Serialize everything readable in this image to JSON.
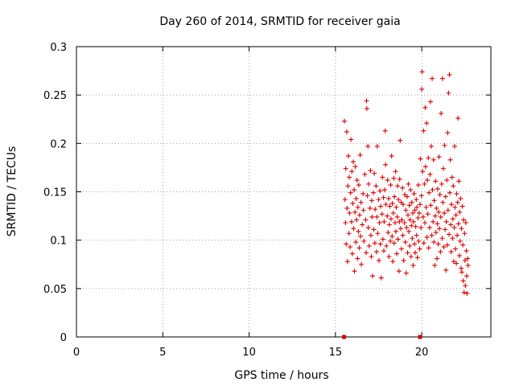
{
  "chart_data": {
    "type": "scatter",
    "title": "Day 260 of 2014, SRMTID for receiver gaia",
    "xlabel": "GPS time / hours",
    "ylabel": "SRMTID / TECUs",
    "xlim": [
      0,
      24
    ],
    "ylim": [
      0,
      0.3
    ],
    "x_ticks": [
      0,
      5,
      10,
      15,
      20
    ],
    "y_ticks": [
      0,
      0.05,
      0.1,
      0.15,
      0.2,
      0.25,
      0.3
    ],
    "x_tick_labels": [
      "0",
      "5",
      "10",
      "15",
      "20"
    ],
    "y_tick_labels": [
      "0",
      "0.05",
      "0.1",
      "0.15",
      "0.2",
      "0.25",
      "0.3"
    ],
    "grid": true,
    "legend": "none",
    "marker": "plus",
    "color": "#dd0000",
    "zero_markers": [
      {
        "x": 15.5,
        "y": 0
      },
      {
        "x": 19.9,
        "y": 0
      }
    ],
    "series": [
      {
        "points": [
          [
            15.52,
            0.223
          ],
          [
            15.55,
            0.142
          ],
          [
            15.58,
            0.118
          ],
          [
            15.6,
            0.174
          ],
          [
            15.62,
            0.096
          ],
          [
            15.65,
            0.212
          ],
          [
            15.67,
            0.133
          ],
          [
            15.7,
            0.078
          ],
          [
            15.72,
            0.156
          ],
          [
            15.75,
            0.187
          ],
          [
            15.78,
            0.107
          ],
          [
            15.8,
            0.165
          ],
          [
            15.82,
            0.128
          ],
          [
            15.85,
            0.093
          ],
          [
            15.88,
            0.149
          ],
          [
            15.9,
            0.204
          ],
          [
            15.93,
            0.119
          ],
          [
            15.95,
            0.171
          ],
          [
            15.98,
            0.086
          ],
          [
            16.0,
            0.138
          ],
          [
            16.03,
            0.181
          ],
          [
            16.05,
            0.112
          ],
          [
            16.08,
            0.152
          ],
          [
            16.1,
            0.068
          ],
          [
            16.13,
            0.129
          ],
          [
            16.15,
            0.176
          ],
          [
            16.18,
            0.098
          ],
          [
            16.2,
            0.143
          ],
          [
            16.22,
            0.121
          ],
          [
            16.25,
            0.162
          ],
          [
            16.28,
            0.081
          ],
          [
            16.3,
            0.134
          ],
          [
            16.33,
            0.109
          ],
          [
            16.35,
            0.157
          ],
          [
            16.38,
            0.092
          ],
          [
            16.4,
            0.126
          ],
          [
            16.43,
            0.188
          ],
          [
            16.45,
            0.104
          ],
          [
            16.48,
            0.139
          ],
          [
            16.5,
            0.075
          ],
          [
            16.55,
            0.116
          ],
          [
            16.6,
            0.148
          ],
          [
            16.62,
            0.131
          ],
          [
            16.65,
            0.099
          ],
          [
            16.7,
            0.168
          ],
          [
            16.75,
            0.121
          ],
          [
            16.78,
            0.087
          ],
          [
            16.8,
            0.244
          ],
          [
            16.82,
            0.236
          ],
          [
            16.85,
            0.146
          ],
          [
            16.88,
            0.197
          ],
          [
            16.9,
            0.113
          ],
          [
            16.92,
            0.158
          ],
          [
            16.95,
            0.094
          ],
          [
            17.0,
            0.133
          ],
          [
            17.03,
            0.172
          ],
          [
            17.05,
            0.105
          ],
          [
            17.08,
            0.083
          ],
          [
            17.1,
            0.141
          ],
          [
            17.12,
            0.124
          ],
          [
            17.15,
            0.063
          ],
          [
            17.2,
            0.149
          ],
          [
            17.22,
            0.111
          ],
          [
            17.25,
            0.169
          ],
          [
            17.28,
            0.097
          ],
          [
            17.3,
            0.132
          ],
          [
            17.35,
            0.156
          ],
          [
            17.38,
            0.088
          ],
          [
            17.4,
            0.124
          ],
          [
            17.42,
            0.197
          ],
          [
            17.45,
            0.107
          ],
          [
            17.5,
            0.142
          ],
          [
            17.52,
            0.079
          ],
          [
            17.55,
            0.118
          ],
          [
            17.58,
            0.151
          ],
          [
            17.6,
            0.096
          ],
          [
            17.62,
            0.135
          ],
          [
            17.65,
            0.061
          ],
          [
            17.7,
            0.127
          ],
          [
            17.72,
            0.165
          ],
          [
            17.75,
            0.101
          ],
          [
            17.78,
            0.144
          ],
          [
            17.8,
            0.089
          ],
          [
            17.82,
            0.119
          ],
          [
            17.85,
            0.152
          ],
          [
            17.88,
            0.213
          ],
          [
            17.9,
            0.178
          ],
          [
            17.92,
            0.137
          ],
          [
            17.95,
            0.094
          ],
          [
            18.0,
            0.125
          ],
          [
            18.02,
            0.162
          ],
          [
            18.05,
            0.108
          ],
          [
            18.08,
            0.143
          ],
          [
            18.1,
            0.083
          ],
          [
            18.12,
            0.116
          ],
          [
            18.15,
            0.135
          ],
          [
            18.18,
            0.099
          ],
          [
            18.2,
            0.157
          ],
          [
            18.22,
            0.122
          ],
          [
            18.25,
            0.187
          ],
          [
            18.28,
            0.104
          ],
          [
            18.3,
            0.138
          ],
          [
            18.32,
            0.078
          ],
          [
            18.35,
            0.128
          ],
          [
            18.38,
            0.164
          ],
          [
            18.4,
            0.097
          ],
          [
            18.42,
            0.145
          ],
          [
            18.45,
            0.118
          ],
          [
            18.48,
            0.171
          ],
          [
            18.5,
            0.109
          ],
          [
            18.52,
            0.134
          ],
          [
            18.55,
            0.086
          ],
          [
            18.58,
            0.124
          ],
          [
            18.6,
            0.156
          ],
          [
            18.62,
            0.101
          ],
          [
            18.65,
            0.142
          ],
          [
            18.68,
            0.068
          ],
          [
            18.7,
            0.119
          ],
          [
            18.72,
            0.163
          ],
          [
            18.75,
            0.203
          ],
          [
            18.78,
            0.112
          ],
          [
            18.8,
            0.139
          ],
          [
            18.82,
            0.091
          ],
          [
            18.85,
            0.121
          ],
          [
            18.88,
            0.154
          ],
          [
            18.9,
            0.105
          ],
          [
            18.92,
            0.137
          ],
          [
            18.95,
            0.079
          ],
          [
            19.0,
            0.118
          ],
          [
            19.02,
            0.147
          ],
          [
            19.05,
            0.098
          ],
          [
            19.08,
            0.131
          ],
          [
            19.1,
            0.066
          ],
          [
            19.12,
            0.113
          ],
          [
            19.15,
            0.145
          ],
          [
            19.18,
            0.087
          ],
          [
            19.2,
            0.126
          ],
          [
            19.22,
            0.158
          ],
          [
            19.25,
            0.109
          ],
          [
            19.28,
            0.136
          ],
          [
            19.3,
            0.094
          ],
          [
            19.32,
            0.121
          ],
          [
            19.35,
            0.152
          ],
          [
            19.38,
            0.083
          ],
          [
            19.4,
            0.115
          ],
          [
            19.42,
            0.139
          ],
          [
            19.45,
            0.102
          ],
          [
            19.48,
            0.128
          ],
          [
            19.5,
            0.074
          ],
          [
            19.52,
            0.119
          ],
          [
            19.55,
            0.148
          ],
          [
            19.58,
            0.096
          ],
          [
            19.6,
            0.131
          ],
          [
            19.62,
            0.087
          ],
          [
            19.65,
            0.114
          ],
          [
            19.68,
            0.142
          ],
          [
            19.7,
            0.105
          ],
          [
            19.72,
            0.134
          ],
          [
            19.75,
            0.082
          ],
          [
            19.78,
            0.123
          ],
          [
            19.8,
            0.157
          ],
          [
            19.82,
            0.099
          ],
          [
            19.85,
            0.128
          ],
          [
            19.88,
            0.091
          ],
          [
            19.9,
            0.137
          ],
          [
            19.92,
            0.184
          ],
          [
            19.95,
            0.113
          ],
          [
            19.98,
            0.146
          ],
          [
            20.0,
            0.256
          ],
          [
            20.02,
            0.274
          ],
          [
            20.05,
            0.171
          ],
          [
            20.08,
            0.124
          ],
          [
            20.1,
            0.213
          ],
          [
            20.12,
            0.097
          ],
          [
            20.15,
            0.158
          ],
          [
            20.18,
            0.118
          ],
          [
            20.2,
            0.237
          ],
          [
            20.22,
            0.176
          ],
          [
            20.25,
            0.134
          ],
          [
            20.28,
            0.221
          ],
          [
            20.3,
            0.103
          ],
          [
            20.32,
            0.162
          ],
          [
            20.35,
            0.127
          ],
          [
            20.38,
            0.185
          ],
          [
            20.4,
            0.092
          ],
          [
            20.42,
            0.149
          ],
          [
            20.45,
            0.113
          ],
          [
            20.48,
            0.168
          ],
          [
            20.5,
            0.243
          ],
          [
            20.52,
            0.136
          ],
          [
            20.55,
            0.197
          ],
          [
            20.58,
            0.105
          ],
          [
            20.6,
            0.267
          ],
          [
            20.62,
            0.152
          ],
          [
            20.65,
            0.119
          ],
          [
            20.68,
            0.183
          ],
          [
            20.7,
            0.098
          ],
          [
            20.72,
            0.141
          ],
          [
            20.75,
            0.074
          ],
          [
            20.78,
            0.125
          ],
          [
            20.8,
            0.161
          ],
          [
            20.82,
            0.108
          ],
          [
            20.85,
            0.133
          ],
          [
            20.88,
            0.081
          ],
          [
            20.9,
            0.117
          ],
          [
            20.92,
            0.153
          ],
          [
            20.95,
            0.096
          ],
          [
            20.98,
            0.129
          ],
          [
            21.0,
            0.186
          ],
          [
            21.02,
            0.112
          ],
          [
            21.05,
            0.147
          ],
          [
            21.08,
            0.088
          ],
          [
            21.1,
            0.124
          ],
          [
            21.12,
            0.231
          ],
          [
            21.15,
            0.158
          ],
          [
            21.18,
            0.102
          ],
          [
            21.2,
            0.267
          ],
          [
            21.22,
            0.139
          ],
          [
            21.25,
            0.174
          ],
          [
            21.28,
            0.093
          ],
          [
            21.3,
            0.128
          ],
          [
            21.32,
            0.198
          ],
          [
            21.35,
            0.111
          ],
          [
            21.38,
            0.145
          ],
          [
            21.4,
            0.069
          ],
          [
            21.42,
            0.119
          ],
          [
            21.45,
            0.162
          ],
          [
            21.48,
            0.095
          ],
          [
            21.5,
            0.211
          ],
          [
            21.52,
            0.131
          ],
          [
            21.55,
            0.252
          ],
          [
            21.58,
            0.106
          ],
          [
            21.6,
            0.271
          ],
          [
            21.62,
            0.149
          ],
          [
            21.65,
            0.183
          ],
          [
            21.68,
            0.116
          ],
          [
            21.7,
            0.088
          ],
          [
            21.72,
            0.137
          ],
          [
            21.75,
            0.165
          ],
          [
            21.78,
            0.102
          ],
          [
            21.8,
            0.122
          ],
          [
            21.82,
            0.156
          ],
          [
            21.85,
            0.078
          ],
          [
            21.88,
            0.113
          ],
          [
            21.9,
            0.197
          ],
          [
            21.92,
            0.134
          ],
          [
            21.95,
            0.091
          ],
          [
            21.98,
            0.126
          ],
          [
            22.0,
            0.076
          ],
          [
            22.02,
            0.148
          ],
          [
            22.05,
            0.105
          ],
          [
            22.08,
            0.139
          ],
          [
            22.1,
            0.226
          ],
          [
            22.12,
            0.117
          ],
          [
            22.15,
            0.161
          ],
          [
            22.18,
            0.084
          ],
          [
            22.2,
            0.129
          ],
          [
            22.22,
            0.099
          ],
          [
            22.25,
            0.143
          ],
          [
            22.28,
            0.071
          ],
          [
            22.3,
            0.112
          ],
          [
            22.32,
            0.067
          ],
          [
            22.35,
            0.135
          ],
          [
            22.38,
            0.095
          ],
          [
            22.4,
            0.058
          ],
          [
            22.42,
            0.121
          ],
          [
            22.45,
            0.046
          ],
          [
            22.48,
            0.107
          ],
          [
            22.5,
            0.079
          ],
          [
            22.52,
            0.053
          ],
          [
            22.55,
            0.118
          ],
          [
            22.58,
            0.089
          ],
          [
            22.6,
            0.063
          ],
          [
            22.62,
            0.045
          ],
          [
            22.65,
            0.081
          ],
          [
            22.68,
            0.074
          ]
        ]
      }
    ]
  }
}
